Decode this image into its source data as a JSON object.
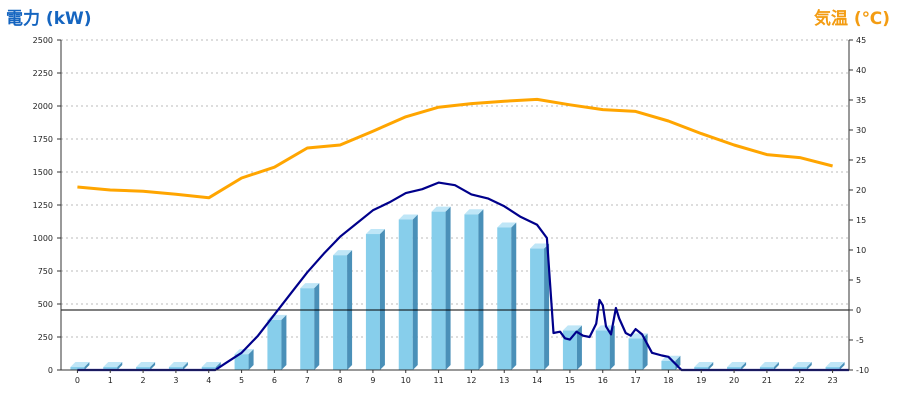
{
  "colors": {
    "power_title": "#1565C0",
    "temp_title": "#F39C12",
    "bar_front": "#87CEEB",
    "bar_side": "#4A90B8",
    "bar_top": "#BFE6F7",
    "power_line": "#00008B",
    "temp_line": "#FFA500",
    "grid": "#bbbbbb",
    "axis": "#333333"
  },
  "chart_data": {
    "type": "bar",
    "left_axis_title": "電力 (kW)",
    "right_axis_title": "気温 (℃)",
    "categories": [
      "0",
      "1",
      "2",
      "3",
      "4",
      "5",
      "6",
      "7",
      "8",
      "9",
      "10",
      "11",
      "12",
      "13",
      "14",
      "15",
      "16",
      "17",
      "18",
      "19",
      "20",
      "21",
      "22",
      "23"
    ],
    "left_axis": {
      "ylim": [
        0,
        2500
      ],
      "ticks": [
        0,
        250,
        500,
        750,
        1000,
        1250,
        1500,
        1750,
        2000,
        2250,
        2500
      ]
    },
    "right_axis": {
      "ylim": [
        -10,
        45
      ],
      "ticks": [
        -10,
        -5,
        0,
        5,
        10,
        15,
        20,
        25,
        30,
        35,
        40,
        45
      ]
    },
    "grid": true,
    "series": [
      {
        "type": "bar",
        "axis": "left",
        "values": [
          0,
          0,
          0,
          0,
          0,
          120,
          380,
          620,
          870,
          1030,
          1140,
          1200,
          1180,
          1080,
          920,
          300,
          300,
          240,
          70,
          0,
          0,
          0,
          0,
          0
        ]
      },
      {
        "type": "line",
        "axis": "left",
        "points": [
          [
            0,
            0
          ],
          [
            4.2,
            0
          ],
          [
            4.5,
            50
          ],
          [
            5,
            130
          ],
          [
            5.5,
            260
          ],
          [
            6,
            420
          ],
          [
            6.5,
            580
          ],
          [
            7,
            740
          ],
          [
            7.5,
            880
          ],
          [
            8,
            1010
          ],
          [
            8.5,
            1110
          ],
          [
            9,
            1210
          ],
          [
            9.5,
            1270
          ],
          [
            10,
            1340
          ],
          [
            10.5,
            1370
          ],
          [
            11,
            1420
          ],
          [
            11.5,
            1400
          ],
          [
            12,
            1330
          ],
          [
            12.5,
            1300
          ],
          [
            13,
            1240
          ],
          [
            13.5,
            1160
          ],
          [
            14,
            1100
          ],
          [
            14.3,
            1000
          ],
          [
            14.5,
            280
          ],
          [
            14.7,
            290
          ],
          [
            14.85,
            240
          ],
          [
            15,
            230
          ],
          [
            15.2,
            290
          ],
          [
            15.4,
            260
          ],
          [
            15.6,
            250
          ],
          [
            15.8,
            350
          ],
          [
            15.9,
            530
          ],
          [
            16,
            490
          ],
          [
            16.1,
            330
          ],
          [
            16.25,
            270
          ],
          [
            16.4,
            470
          ],
          [
            16.5,
            390
          ],
          [
            16.7,
            280
          ],
          [
            16.85,
            260
          ],
          [
            17,
            310
          ],
          [
            17.2,
            270
          ],
          [
            17.5,
            130
          ],
          [
            17.8,
            110
          ],
          [
            18,
            100
          ],
          [
            18.4,
            0
          ],
          [
            23.5,
            0
          ]
        ]
      },
      {
        "type": "line",
        "axis": "right",
        "points": [
          [
            0,
            20.5
          ],
          [
            1,
            20
          ],
          [
            2,
            19.8
          ],
          [
            3,
            19.3
          ],
          [
            4,
            18.7
          ],
          [
            5,
            22
          ],
          [
            6,
            23.8
          ],
          [
            7,
            27
          ],
          [
            8,
            27.5
          ],
          [
            9,
            29.8
          ],
          [
            10,
            32.2
          ],
          [
            11,
            33.8
          ],
          [
            12,
            34.4
          ],
          [
            13,
            34.8
          ],
          [
            14,
            35.1
          ],
          [
            15,
            34.2
          ],
          [
            16,
            33.4
          ],
          [
            17,
            33.1
          ],
          [
            18,
            31.5
          ],
          [
            19,
            29.4
          ],
          [
            20,
            27.5
          ],
          [
            21,
            25.9
          ],
          [
            22,
            25.4
          ],
          [
            23,
            24
          ]
        ]
      }
    ],
    "reference_line": {
      "axis": "right",
      "value": 0
    }
  }
}
